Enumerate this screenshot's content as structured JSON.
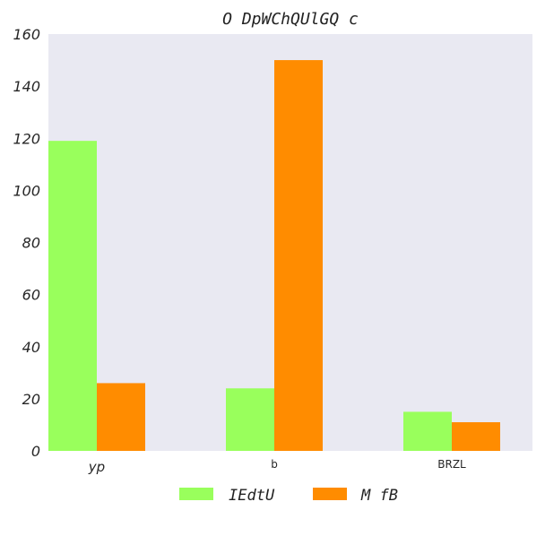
{
  "chart_data": {
    "type": "bar",
    "title": "O DpWChQUlGQ c",
    "categories": [
      "yp",
      "b",
      "BRZL"
    ],
    "series": [
      {
        "name": "IEdtU",
        "color": "#99ff5c",
        "values": [
          119,
          24,
          15
        ]
      },
      {
        "name": "M fB",
        "color": "#ff8c00",
        "values": [
          26,
          150,
          11
        ]
      }
    ],
    "ylim": [
      0,
      160
    ],
    "yticks": [
      0,
      20,
      40,
      60,
      80,
      100,
      120,
      140,
      160
    ],
    "grid": false,
    "plot_background": "#e9e9f2",
    "legend_position": "bottom-center"
  }
}
